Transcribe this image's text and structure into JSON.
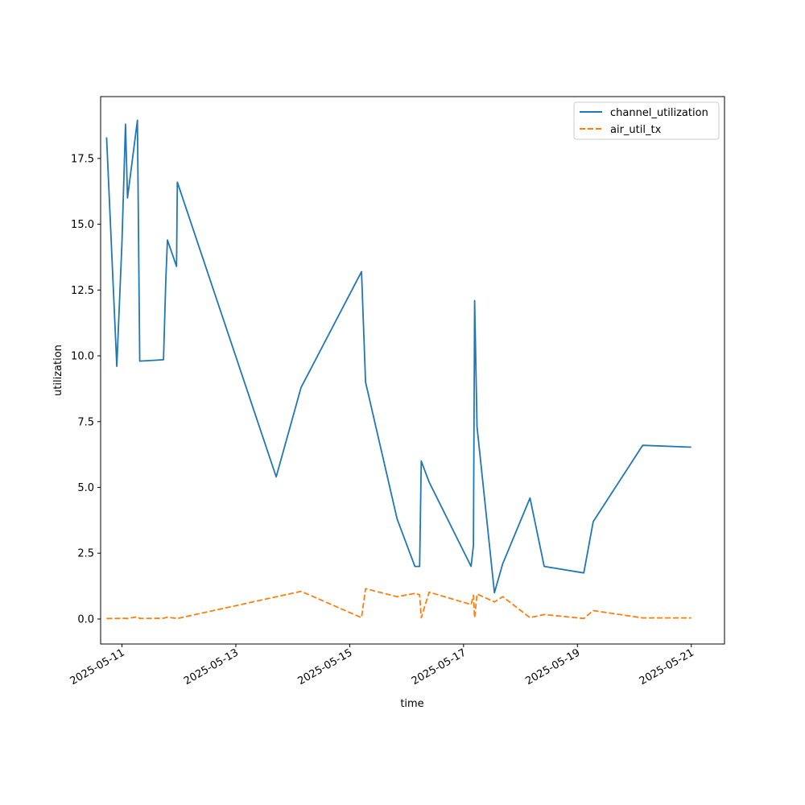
{
  "chart_data": {
    "type": "line",
    "xlabel": "time",
    "ylabel": "utilization",
    "x_axis_type": "date",
    "xlim": [
      "2025-05-10 15:00",
      "2025-05-21 14:00"
    ],
    "ylim": [
      -0.95,
      19.85
    ],
    "x_ticks": [
      "2025-05-11",
      "2025-05-13",
      "2025-05-15",
      "2025-05-17",
      "2025-05-19",
      "2025-05-21"
    ],
    "y_ticks": [
      "0.0",
      "2.5",
      "5.0",
      "7.5",
      "10.0",
      "12.5",
      "15.0",
      "17.5"
    ],
    "grid": false,
    "legend_position": "top-right",
    "series": [
      {
        "name": "channel_utilization",
        "color": "#1f77b4",
        "dash": "solid",
        "points": [
          [
            "2025-05-10 17:30",
            18.3
          ],
          [
            "2025-05-10 21:50",
            9.6
          ],
          [
            "2025-05-11 00:00",
            14.3
          ],
          [
            "2025-05-11 01:30",
            18.8
          ],
          [
            "2025-05-11 02:20",
            16.0
          ],
          [
            "2025-05-11 06:30",
            18.95
          ],
          [
            "2025-05-11 07:30",
            9.8
          ],
          [
            "2025-05-11 17:30",
            9.85
          ],
          [
            "2025-05-11 18:30",
            12.9
          ],
          [
            "2025-05-11 19:10",
            14.4
          ],
          [
            "2025-05-11 23:00",
            13.4
          ],
          [
            "2025-05-11 23:20",
            16.6
          ],
          [
            "2025-05-13 17:00",
            5.4
          ],
          [
            "2025-05-14 03:30",
            8.8
          ],
          [
            "2025-05-15 05:00",
            13.2
          ],
          [
            "2025-05-15 06:40",
            9.0
          ],
          [
            "2025-05-15 20:00",
            3.8
          ],
          [
            "2025-05-16 03:30",
            2.0
          ],
          [
            "2025-05-16 05:30",
            2.0
          ],
          [
            "2025-05-16 06:10",
            6.0
          ],
          [
            "2025-05-16 09:30",
            5.2
          ],
          [
            "2025-05-17 03:10",
            2.0
          ],
          [
            "2025-05-17 04:10",
            2.8
          ],
          [
            "2025-05-17 04:40",
            12.1
          ],
          [
            "2025-05-17 05:40",
            7.3
          ],
          [
            "2025-05-17 13:00",
            1.0
          ],
          [
            "2025-05-17 16:30",
            2.1
          ],
          [
            "2025-05-18 04:00",
            4.6
          ],
          [
            "2025-05-18 10:00",
            2.0
          ],
          [
            "2025-05-19 02:40",
            1.75
          ],
          [
            "2025-05-19 06:40",
            3.7
          ],
          [
            "2025-05-20 03:30",
            6.6
          ],
          [
            "2025-05-21 00:00",
            6.53
          ]
        ]
      },
      {
        "name": "air_util_tx",
        "color": "#ff7f0e",
        "dash": "dashed",
        "points": [
          [
            "2025-05-10 17:30",
            0.02
          ],
          [
            "2025-05-10 21:50",
            0.02
          ],
          [
            "2025-05-11 00:00",
            0.03
          ],
          [
            "2025-05-11 02:20",
            0.02
          ],
          [
            "2025-05-11 06:30",
            0.08
          ],
          [
            "2025-05-11 07:30",
            0.02
          ],
          [
            "2025-05-11 17:30",
            0.03
          ],
          [
            "2025-05-11 19:10",
            0.07
          ],
          [
            "2025-05-11 23:20",
            0.02
          ],
          [
            "2025-05-14 03:30",
            1.05
          ],
          [
            "2025-05-15 05:00",
            0.05
          ],
          [
            "2025-05-15 06:40",
            1.15
          ],
          [
            "2025-05-15 20:00",
            0.85
          ],
          [
            "2025-05-16 03:30",
            0.97
          ],
          [
            "2025-05-16 05:30",
            0.92
          ],
          [
            "2025-05-16 06:10",
            0.05
          ],
          [
            "2025-05-16 09:30",
            1.02
          ],
          [
            "2025-05-17 03:10",
            0.55
          ],
          [
            "2025-05-17 04:10",
            0.9
          ],
          [
            "2025-05-17 04:40",
            0.05
          ],
          [
            "2025-05-17 05:40",
            0.95
          ],
          [
            "2025-05-17 13:00",
            0.65
          ],
          [
            "2025-05-17 16:30",
            0.85
          ],
          [
            "2025-05-18 04:00",
            0.05
          ],
          [
            "2025-05-18 10:00",
            0.17
          ],
          [
            "2025-05-19 02:40",
            0.02
          ],
          [
            "2025-05-19 06:40",
            0.32
          ],
          [
            "2025-05-20 03:30",
            0.04
          ],
          [
            "2025-05-21 00:00",
            0.04
          ]
        ]
      }
    ]
  }
}
